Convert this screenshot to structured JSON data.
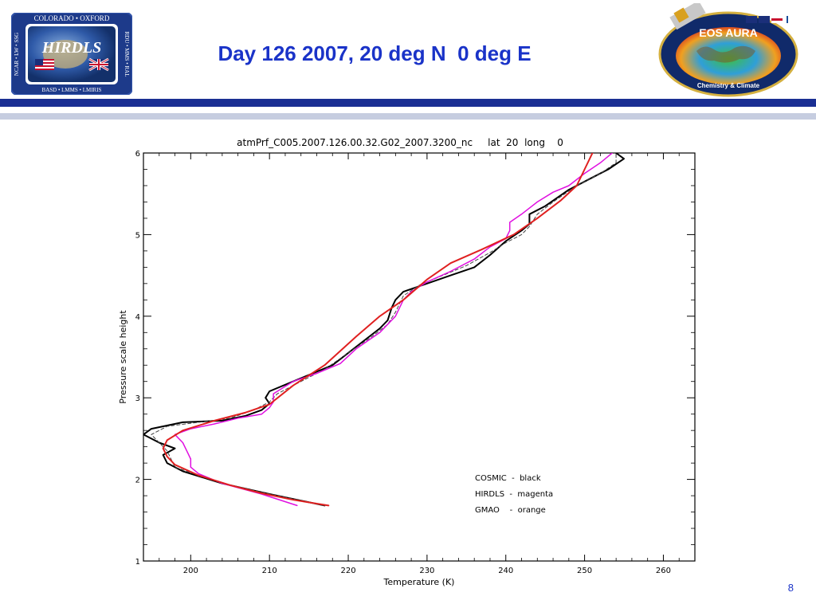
{
  "slide": {
    "title": "Day 126 2007, 20 deg N  0 deg E",
    "page_number": "8"
  },
  "logos": {
    "hirdls": {
      "name": "HIRDLS",
      "top_text": "COLORADO • OXFORD",
      "left_text": "NCAR • LW • SSG",
      "right_text": "RDU • MMS • RAL",
      "bottom_text": "BASD • LMMS • LMIRIS"
    },
    "aura": {
      "name": "EOS AURA",
      "caption": "Chemistry & Climate"
    }
  },
  "colors": {
    "title_blue": "#1a33c8",
    "header_bar": "#1a2f93",
    "header_bar_light": "#c6cde0",
    "cosmic": "#000000",
    "hirdls": "#e010e0",
    "gmao": "#e02020"
  },
  "chart_data": {
    "type": "line",
    "title": "atmPrf_C005.2007.126.00.32.G02_2007.3200_nc     lat  20  long    0",
    "xlabel": "Temperature (K)",
    "ylabel": "Pressure scale height",
    "xlim": [
      194,
      264
    ],
    "ylim": [
      1,
      6
    ],
    "x_ticks": [
      200,
      210,
      220,
      230,
      240,
      250,
      260
    ],
    "y_ticks": [
      1,
      2,
      3,
      4,
      5,
      6
    ],
    "grid": false,
    "legend_position": "lower-right",
    "legend": [
      "COSMIC  -  black",
      "HIRDLS  -  magenta",
      "GMAO    -  orange"
    ],
    "series": [
      {
        "name": "COSMIC",
        "color": "#000000",
        "width": 2,
        "points": [
          [
            217,
            1.68
          ],
          [
            210,
            1.82
          ],
          [
            204,
            1.95
          ],
          [
            199,
            2.1
          ],
          [
            197,
            2.2
          ],
          [
            196.5,
            2.3
          ],
          [
            198,
            2.38
          ],
          [
            196,
            2.45
          ],
          [
            194,
            2.55
          ],
          [
            195,
            2.62
          ],
          [
            199,
            2.7
          ],
          [
            204,
            2.72
          ],
          [
            207,
            2.78
          ],
          [
            209,
            2.85
          ],
          [
            210,
            2.93
          ],
          [
            209.5,
            3.0
          ],
          [
            210,
            3.08
          ],
          [
            213,
            3.2
          ],
          [
            215,
            3.28
          ],
          [
            218,
            3.4
          ],
          [
            220,
            3.55
          ],
          [
            222,
            3.7
          ],
          [
            224,
            3.85
          ],
          [
            225,
            3.95
          ],
          [
            225.5,
            4.1
          ],
          [
            226,
            4.2
          ],
          [
            227,
            4.3
          ],
          [
            230,
            4.4
          ],
          [
            233,
            4.5
          ],
          [
            236,
            4.6
          ],
          [
            238,
            4.75
          ],
          [
            240,
            4.92
          ],
          [
            242,
            5.05
          ],
          [
            243,
            5.13
          ],
          [
            243,
            5.25
          ],
          [
            245,
            5.35
          ],
          [
            248,
            5.55
          ],
          [
            251,
            5.7
          ],
          [
            253,
            5.8
          ],
          [
            255,
            5.93
          ],
          [
            254,
            6.0
          ]
        ]
      },
      {
        "name": "COSMIC (dashed)",
        "color": "#444444",
        "width": 1,
        "dash": "4,3",
        "points": [
          [
            217,
            1.68
          ],
          [
            210,
            1.82
          ],
          [
            205,
            1.93
          ],
          [
            201,
            2.05
          ],
          [
            198,
            2.15
          ],
          [
            197.5,
            2.25
          ],
          [
            197,
            2.35
          ],
          [
            196,
            2.45
          ],
          [
            195,
            2.55
          ],
          [
            197,
            2.65
          ],
          [
            201,
            2.7
          ],
          [
            205,
            2.75
          ],
          [
            208,
            2.85
          ],
          [
            210,
            2.95
          ],
          [
            211,
            3.05
          ],
          [
            214,
            3.2
          ],
          [
            217,
            3.35
          ],
          [
            220,
            3.55
          ],
          [
            223,
            3.75
          ],
          [
            225,
            3.9
          ],
          [
            226,
            4.05
          ],
          [
            227,
            4.25
          ],
          [
            229,
            4.38
          ],
          [
            232,
            4.5
          ],
          [
            235,
            4.62
          ],
          [
            238,
            4.78
          ],
          [
            240,
            4.9
          ],
          [
            242,
            5.0
          ],
          [
            243,
            5.1
          ],
          [
            244,
            5.25
          ],
          [
            246,
            5.4
          ],
          [
            249,
            5.6
          ],
          [
            252,
            5.75
          ],
          [
            254,
            5.88
          ],
          [
            254,
            6.0
          ]
        ]
      },
      {
        "name": "HIRDLS",
        "color": "#e010e0",
        "width": 1.5,
        "points": [
          [
            213.5,
            1.68
          ],
          [
            209,
            1.82
          ],
          [
            204,
            1.95
          ],
          [
            201,
            2.07
          ],
          [
            200,
            2.15
          ],
          [
            200,
            2.25
          ],
          [
            199.5,
            2.35
          ],
          [
            199,
            2.45
          ],
          [
            198,
            2.55
          ],
          [
            200,
            2.62
          ],
          [
            203,
            2.68
          ],
          [
            206,
            2.75
          ],
          [
            209,
            2.8
          ],
          [
            210,
            2.88
          ],
          [
            210.5,
            2.95
          ],
          [
            210.5,
            3.05
          ],
          [
            213,
            3.2
          ],
          [
            216,
            3.3
          ],
          [
            219,
            3.42
          ],
          [
            221,
            3.6
          ],
          [
            224,
            3.8
          ],
          [
            226,
            4.0
          ],
          [
            227,
            4.2
          ],
          [
            228,
            4.3
          ],
          [
            230,
            4.42
          ],
          [
            233,
            4.55
          ],
          [
            236,
            4.7
          ],
          [
            238,
            4.85
          ],
          [
            240,
            4.95
          ],
          [
            240.5,
            5.05
          ],
          [
            240.5,
            5.15
          ],
          [
            242,
            5.25
          ],
          [
            244,
            5.4
          ],
          [
            246,
            5.52
          ],
          [
            248,
            5.6
          ],
          [
            250,
            5.75
          ],
          [
            252,
            5.88
          ],
          [
            253.5,
            6.0
          ]
        ]
      },
      {
        "name": "GMAO",
        "color": "#e02020",
        "width": 2,
        "points": [
          [
            217.5,
            1.68
          ],
          [
            213,
            1.75
          ],
          [
            209,
            1.83
          ],
          [
            205,
            1.93
          ],
          [
            201,
            2.05
          ],
          [
            198,
            2.18
          ],
          [
            197,
            2.28
          ],
          [
            196.5,
            2.38
          ],
          [
            197,
            2.48
          ],
          [
            199,
            2.6
          ],
          [
            203,
            2.72
          ],
          [
            207,
            2.82
          ],
          [
            210,
            2.92
          ],
          [
            213,
            3.15
          ],
          [
            217,
            3.4
          ],
          [
            221,
            3.75
          ],
          [
            224,
            4.0
          ],
          [
            227,
            4.2
          ],
          [
            230,
            4.45
          ],
          [
            233,
            4.65
          ],
          [
            237,
            4.82
          ],
          [
            241,
            5.0
          ],
          [
            244,
            5.2
          ],
          [
            247,
            5.42
          ],
          [
            249,
            5.6
          ],
          [
            250,
            5.8
          ],
          [
            251,
            6.0
          ]
        ]
      }
    ]
  }
}
